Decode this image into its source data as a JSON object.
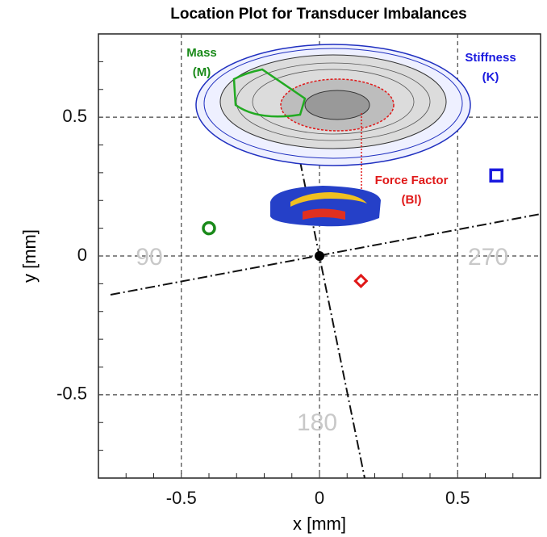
{
  "chart_data": {
    "type": "scatter",
    "title": "Location Plot for Transducer Imbalances",
    "x_label": "x [mm]",
    "y_label": "y [mm]",
    "xlim": [
      -0.8,
      0.8
    ],
    "ylim": [
      -0.8,
      0.8
    ],
    "xticks": [
      -0.5,
      0,
      0.5
    ],
    "yticks": [
      -0.5,
      0,
      0.5
    ],
    "grid": true,
    "series": [
      {
        "color": "#1a8a1a",
        "marker": "circle",
        "x": [
          -0.4
        ],
        "values": [
          0.1
        ]
      },
      {
        "color": "#1a1adf",
        "marker": "square",
        "x": [
          0.64
        ],
        "values": [
          0.29
        ]
      },
      {
        "color": "#e01818",
        "marker": "diamond",
        "x": [
          0.15
        ],
        "values": [
          -0.09
        ]
      },
      {
        "color": "#000000",
        "marker": "dot",
        "x": [
          0
        ],
        "values": [
          0
        ]
      }
    ],
    "annotations": [
      {
        "lines": [
          "Mass",
          "(M)"
        ],
        "color": "#1a8a1a"
      },
      {
        "lines": [
          "Stiffness",
          "(K)"
        ],
        "color": "#1a1adf"
      },
      {
        "lines": [
          "Force Factor",
          "(Bl)"
        ],
        "color": "#e01818"
      },
      {
        "lines": [
          "90"
        ],
        "color": "#c8c8c8"
      },
      {
        "lines": [
          "270"
        ],
        "color": "#c8c8c8"
      },
      {
        "lines": [
          "180"
        ],
        "color": "#c8c8c8"
      }
    ]
  }
}
